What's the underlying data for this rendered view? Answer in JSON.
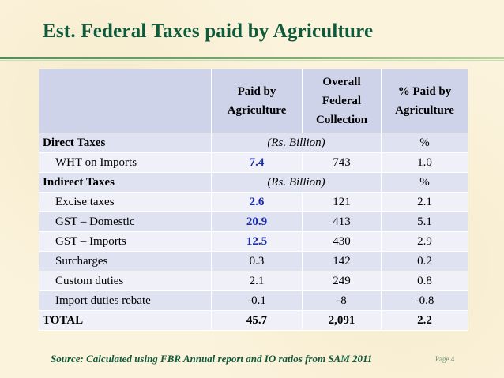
{
  "slide": {
    "title": "Est. Federal Taxes paid by Agriculture",
    "source": "Source: Calculated using FBR Annual report and IO ratios from SAM 2011",
    "page": "Page 4"
  },
  "table": {
    "headers": {
      "c1": [
        "Paid by",
        "Agriculture"
      ],
      "c2": [
        "Overall",
        "Federal",
        "Collection"
      ],
      "c3": [
        "% Paid by",
        "Agriculture"
      ]
    },
    "direct": {
      "label": "Direct Taxes",
      "unit": "(Rs. Billion)",
      "pct_unit": "%"
    },
    "wht": {
      "label": "WHT on Imports",
      "paid": "7.4",
      "overall": "743",
      "pct": "1.0"
    },
    "indirect": {
      "label": "Indirect Taxes",
      "unit": "(Rs. Billion)",
      "pct_unit": "%"
    },
    "excise": {
      "label": "Excise taxes",
      "paid": "2.6",
      "overall": "121",
      "pct": "2.1"
    },
    "gst_domestic": {
      "label": "GST – Domestic",
      "paid": "20.9",
      "overall": "413",
      "pct": "5.1"
    },
    "gst_imports": {
      "label": "GST – Imports",
      "paid": "12.5",
      "overall": "430",
      "pct": "2.9"
    },
    "surcharges": {
      "label": "Surcharges",
      "paid": "0.3",
      "overall": "142",
      "pct": "0.2"
    },
    "custom": {
      "label": "Custom duties",
      "paid": "2.1",
      "overall": "249",
      "pct": "0.8"
    },
    "rebate": {
      "label": "Import duties rebate",
      "paid": "-0.1",
      "overall": "-8",
      "pct": "-0.8"
    },
    "total": {
      "label": "TOTAL",
      "paid": "45.7",
      "overall": "2,091",
      "pct": "2.2"
    }
  },
  "colors": {
    "title": "#0f5a3a",
    "highlight": "#1a2bb0",
    "header_bg": "#cfd3ea"
  }
}
